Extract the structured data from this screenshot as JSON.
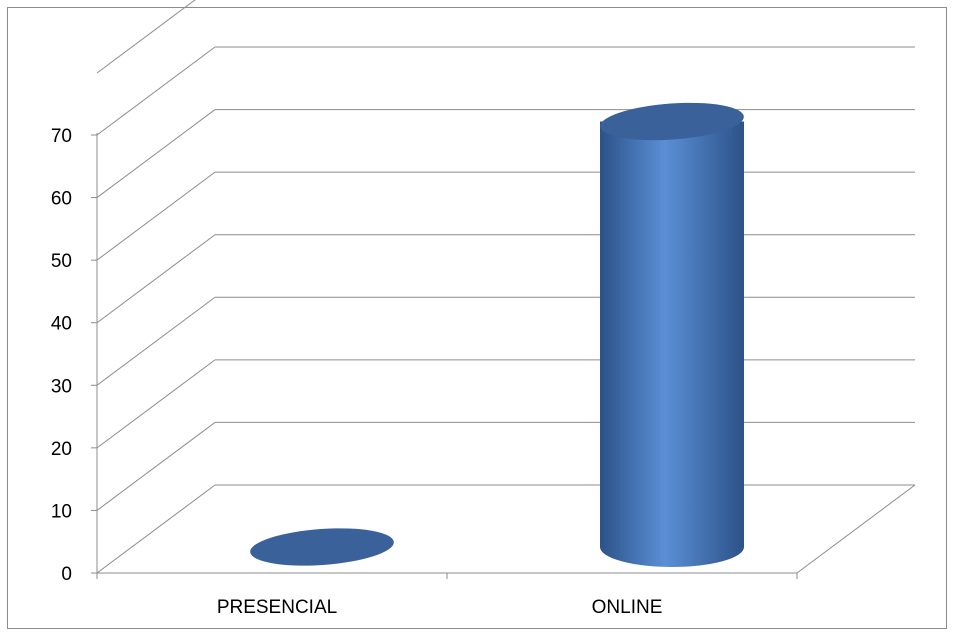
{
  "chart_data": {
    "type": "bar",
    "style": "3d-cylinder",
    "categories": [
      "PRESENCIAL",
      "ONLINE"
    ],
    "values": [
      0,
      68
    ],
    "ylim": [
      0,
      70
    ],
    "yticks": [
      "0",
      "10",
      "20",
      "30",
      "40",
      "50",
      "60",
      "70"
    ],
    "grid": true,
    "legend": "none",
    "title": "",
    "xlabel": "",
    "ylabel": ""
  },
  "colors": {
    "bar_light": "#5a8fd6",
    "bar_mid": "#4a7ec4",
    "bar_dark": "#2c5288",
    "bar_top": "#3a6199",
    "grid": "#8c8c8c"
  }
}
